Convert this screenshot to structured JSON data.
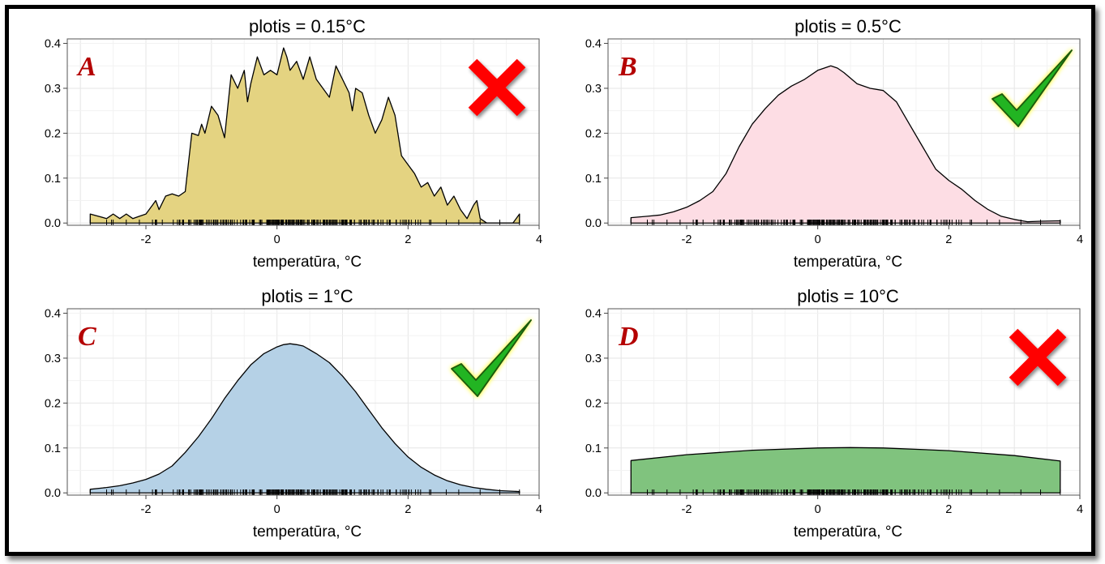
{
  "colors": {
    "A": "#e4d381",
    "B": "#fddde4",
    "C": "#b5d1e6",
    "D": "#80c37e",
    "cross": "#ff0000",
    "check": "#22b422",
    "letter": "#b40000"
  },
  "chart_data": [
    {
      "type": "area",
      "panel_letter": "A",
      "title": "plotis = 0.15°C",
      "xlabel": "temperatūra, °C",
      "ylabel": "",
      "xlim": [
        -3.2,
        4.0
      ],
      "ylim": [
        -0.005,
        0.41
      ],
      "xticks": [
        -2,
        0,
        2,
        4
      ],
      "yticks": [
        0.0,
        0.1,
        0.2,
        0.3,
        0.4
      ],
      "ytick_labels": [
        "0.0",
        "0.1",
        "0.2",
        "0.3",
        "0.4"
      ],
      "grid": true,
      "mark": "cross-icon",
      "fill": "#e4d381",
      "x": [
        -2.85,
        -2.6,
        -2.5,
        -2.4,
        -2.3,
        -2.2,
        -2.1,
        -2.0,
        -1.9,
        -1.85,
        -1.8,
        -1.7,
        -1.6,
        -1.5,
        -1.4,
        -1.3,
        -1.2,
        -1.15,
        -1.1,
        -1.0,
        -0.9,
        -0.8,
        -0.7,
        -0.6,
        -0.5,
        -0.45,
        -0.4,
        -0.3,
        -0.2,
        -0.1,
        0.0,
        0.1,
        0.15,
        0.2,
        0.3,
        0.4,
        0.5,
        0.6,
        0.7,
        0.8,
        0.9,
        1.0,
        1.1,
        1.15,
        1.2,
        1.3,
        1.4,
        1.5,
        1.6,
        1.7,
        1.8,
        1.9,
        2.0,
        2.1,
        2.2,
        2.3,
        2.4,
        2.5,
        2.6,
        2.7,
        2.8,
        2.9,
        3.0,
        3.05,
        3.1,
        3.2,
        3.3,
        3.5,
        3.6,
        3.7
      ],
      "y": [
        0.02,
        0.01,
        0.02,
        0.01,
        0.02,
        0.01,
        0.015,
        0.02,
        0.04,
        0.05,
        0.03,
        0.06,
        0.065,
        0.06,
        0.07,
        0.2,
        0.195,
        0.22,
        0.2,
        0.26,
        0.24,
        0.19,
        0.33,
        0.3,
        0.34,
        0.27,
        0.31,
        0.37,
        0.33,
        0.34,
        0.33,
        0.39,
        0.37,
        0.34,
        0.36,
        0.32,
        0.37,
        0.32,
        0.3,
        0.28,
        0.35,
        0.32,
        0.29,
        0.25,
        0.3,
        0.29,
        0.24,
        0.2,
        0.23,
        0.28,
        0.24,
        0.15,
        0.13,
        0.11,
        0.08,
        0.09,
        0.06,
        0.08,
        0.04,
        0.06,
        0.03,
        0.01,
        0.04,
        0.05,
        0.01,
        0.0,
        0.0,
        0.0,
        0.0,
        0.02
      ]
    },
    {
      "type": "area",
      "panel_letter": "B",
      "title": "plotis = 0.5°C",
      "xlabel": "temperatūra, °C",
      "ylabel": "",
      "xlim": [
        -3.2,
        4.0
      ],
      "ylim": [
        -0.005,
        0.41
      ],
      "xticks": [
        -2,
        0,
        2,
        4
      ],
      "yticks": [
        0.0,
        0.1,
        0.2,
        0.3,
        0.4
      ],
      "ytick_labels": [
        "0.0",
        "0.1",
        "0.2",
        "0.3",
        "0.4"
      ],
      "grid": true,
      "mark": "checkmark-icon",
      "fill": "#fddde4",
      "x": [
        -2.85,
        -2.6,
        -2.4,
        -2.2,
        -2.0,
        -1.8,
        -1.6,
        -1.4,
        -1.2,
        -1.0,
        -0.8,
        -0.6,
        -0.4,
        -0.2,
        0.0,
        0.1,
        0.2,
        0.3,
        0.4,
        0.6,
        0.8,
        1.0,
        1.2,
        1.4,
        1.6,
        1.8,
        2.0,
        2.2,
        2.4,
        2.6,
        2.8,
        3.0,
        3.2,
        3.4,
        3.7
      ],
      "y": [
        0.012,
        0.015,
        0.018,
        0.025,
        0.035,
        0.05,
        0.07,
        0.11,
        0.17,
        0.22,
        0.255,
        0.285,
        0.305,
        0.32,
        0.34,
        0.345,
        0.35,
        0.345,
        0.335,
        0.31,
        0.3,
        0.295,
        0.27,
        0.22,
        0.17,
        0.12,
        0.095,
        0.075,
        0.05,
        0.03,
        0.015,
        0.008,
        0.003,
        0.004,
        0.005
      ]
    },
    {
      "type": "area",
      "panel_letter": "C",
      "title": "plotis = 1°C",
      "xlabel": "temperatūra, °C",
      "ylabel": "",
      "xlim": [
        -3.2,
        4.0
      ],
      "ylim": [
        -0.005,
        0.41
      ],
      "xticks": [
        -2,
        0,
        2,
        4
      ],
      "yticks": [
        0.0,
        0.1,
        0.2,
        0.3,
        0.4
      ],
      "ytick_labels": [
        "0.0",
        "0.1",
        "0.2",
        "0.3",
        "0.4"
      ],
      "grid": true,
      "mark": "checkmark-icon",
      "fill": "#b5d1e6",
      "x": [
        -2.85,
        -2.6,
        -2.4,
        -2.2,
        -2.0,
        -1.8,
        -1.6,
        -1.4,
        -1.2,
        -1.0,
        -0.8,
        -0.6,
        -0.4,
        -0.2,
        0.0,
        0.1,
        0.2,
        0.3,
        0.4,
        0.6,
        0.8,
        1.0,
        1.2,
        1.4,
        1.6,
        1.8,
        2.0,
        2.2,
        2.4,
        2.6,
        2.8,
        3.0,
        3.2,
        3.4,
        3.7
      ],
      "y": [
        0.008,
        0.012,
        0.016,
        0.022,
        0.03,
        0.042,
        0.06,
        0.09,
        0.125,
        0.165,
        0.21,
        0.25,
        0.285,
        0.31,
        0.325,
        0.33,
        0.332,
        0.33,
        0.327,
        0.31,
        0.29,
        0.26,
        0.225,
        0.185,
        0.145,
        0.11,
        0.08,
        0.057,
        0.04,
        0.027,
        0.018,
        0.012,
        0.008,
        0.005,
        0.003
      ]
    },
    {
      "type": "area",
      "panel_letter": "D",
      "title": "plotis = 10°C",
      "xlabel": "temperatūra, °C",
      "ylabel": "",
      "xlim": [
        -3.2,
        4.0
      ],
      "ylim": [
        -0.005,
        0.41
      ],
      "xticks": [
        -2,
        0,
        2,
        4
      ],
      "yticks": [
        0.0,
        0.1,
        0.2,
        0.3,
        0.4
      ],
      "ytick_labels": [
        "0.0",
        "0.1",
        "0.2",
        "0.3",
        "0.4"
      ],
      "grid": true,
      "mark": "cross-icon",
      "fill": "#80c37e",
      "x": [
        -2.85,
        -2.0,
        -1.0,
        0.0,
        0.5,
        1.0,
        2.0,
        3.0,
        3.7
      ],
      "y": [
        0.072,
        0.085,
        0.095,
        0.1,
        0.101,
        0.1,
        0.094,
        0.083,
        0.071
      ]
    }
  ]
}
